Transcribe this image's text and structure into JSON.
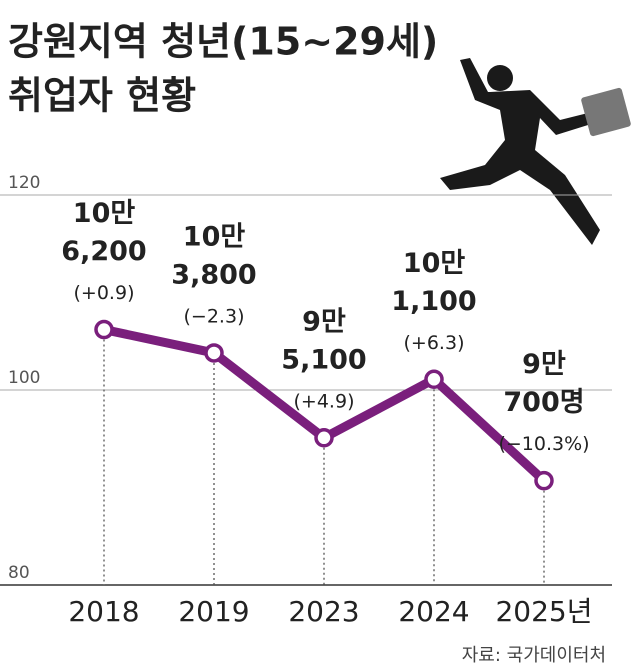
{
  "chart_data": {
    "type": "line",
    "title": [
      "강원지역 청년(15~29세)",
      "취업자 현황"
    ],
    "categories": [
      "2018",
      "2019",
      "2023",
      "2024",
      "2025년"
    ],
    "values": [
      106.2,
      103.8,
      95.1,
      101.1,
      90.7
    ],
    "value_labels": [
      [
        "10만",
        "6,200"
      ],
      [
        "10만",
        "3,800"
      ],
      [
        "9만",
        "5,100"
      ],
      [
        "10만",
        "1,100"
      ],
      [
        "9만",
        "700명"
      ]
    ],
    "annotations": [
      "(+0.9)",
      "(−2.3)",
      "(+4.9)",
      "(+6.3)",
      "(−10.3%)"
    ],
    "color": "#7a1f7c",
    "ylim": [
      80,
      120
    ],
    "yticks": [
      80,
      100,
      120
    ],
    "grid": true,
    "source": "자료: 국가데이터처"
  }
}
